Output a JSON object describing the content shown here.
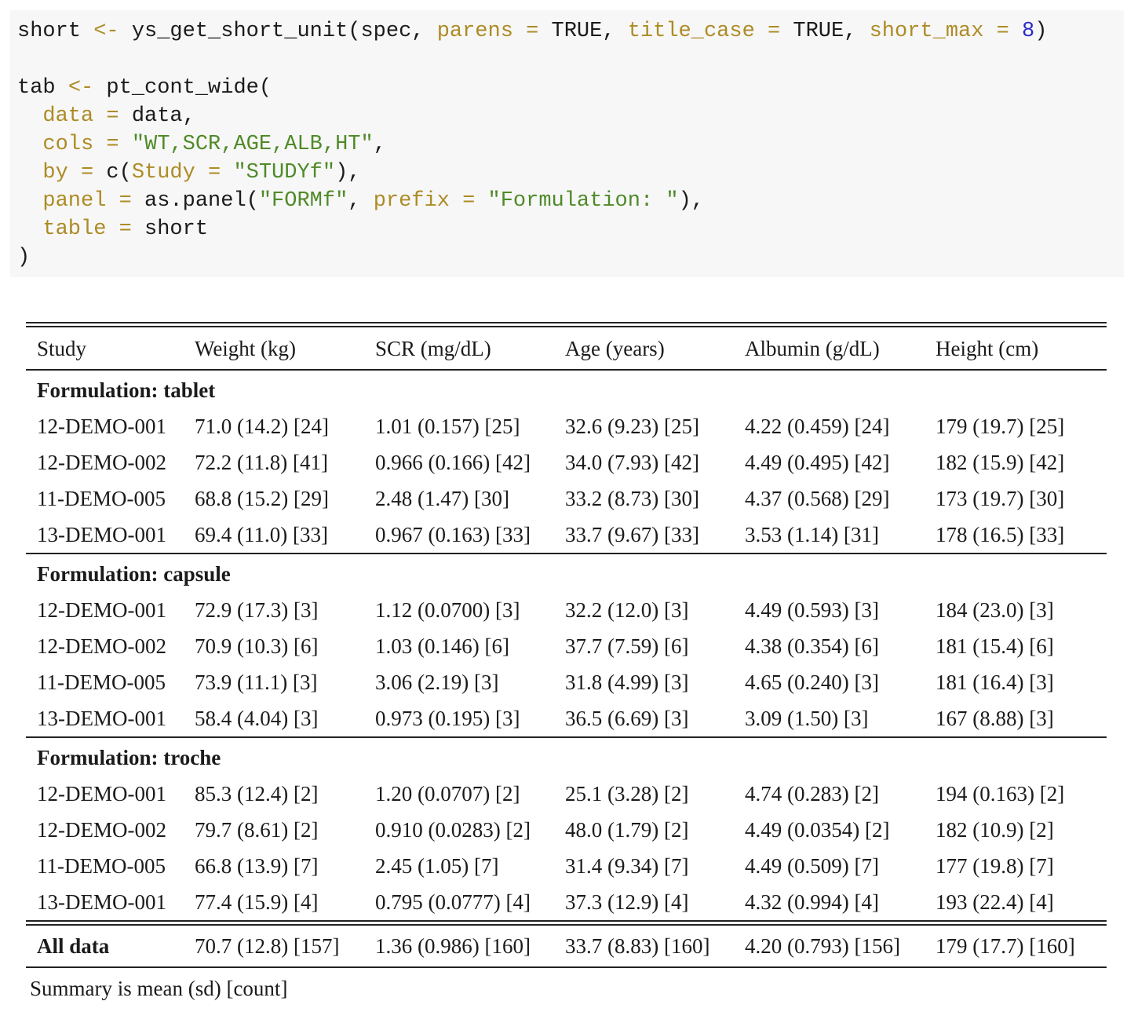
{
  "code": {
    "colors": {
      "plain": "#1b1b1b",
      "op": "#ad8b25",
      "arg": "#ad8b25",
      "str": "#4f8a28",
      "num": "#2a2ac9"
    },
    "background": "#f7f7f7",
    "lines": [
      [
        {
          "t": "short "
        },
        {
          "t": "<-",
          "c": "op"
        },
        {
          "t": " ys_get_short_unit(spec, "
        },
        {
          "t": "parens",
          "c": "arg"
        },
        {
          "t": " "
        },
        {
          "t": "=",
          "c": "op"
        },
        {
          "t": " TRUE, "
        },
        {
          "t": "title_case",
          "c": "arg"
        },
        {
          "t": " "
        },
        {
          "t": "=",
          "c": "op"
        },
        {
          "t": " TRUE, "
        },
        {
          "t": "short_max",
          "c": "arg"
        },
        {
          "t": " "
        },
        {
          "t": "=",
          "c": "op"
        },
        {
          "t": " "
        },
        {
          "t": "8",
          "c": "num"
        },
        {
          "t": ")"
        }
      ],
      [],
      [
        {
          "t": "tab "
        },
        {
          "t": "<-",
          "c": "op"
        },
        {
          "t": " pt_cont_wide("
        }
      ],
      [
        {
          "t": "  "
        },
        {
          "t": "data",
          "c": "arg"
        },
        {
          "t": " "
        },
        {
          "t": "=",
          "c": "op"
        },
        {
          "t": " data,"
        }
      ],
      [
        {
          "t": "  "
        },
        {
          "t": "cols",
          "c": "arg"
        },
        {
          "t": " "
        },
        {
          "t": "=",
          "c": "op"
        },
        {
          "t": " "
        },
        {
          "t": "\"WT,SCR,AGE,ALB,HT\"",
          "c": "str"
        },
        {
          "t": ","
        }
      ],
      [
        {
          "t": "  "
        },
        {
          "t": "by",
          "c": "arg"
        },
        {
          "t": " "
        },
        {
          "t": "=",
          "c": "op"
        },
        {
          "t": " c("
        },
        {
          "t": "Study",
          "c": "arg"
        },
        {
          "t": " "
        },
        {
          "t": "=",
          "c": "op"
        },
        {
          "t": " "
        },
        {
          "t": "\"STUDYf\"",
          "c": "str"
        },
        {
          "t": "),"
        }
      ],
      [
        {
          "t": "  "
        },
        {
          "t": "panel",
          "c": "arg"
        },
        {
          "t": " "
        },
        {
          "t": "=",
          "c": "op"
        },
        {
          "t": " as.panel("
        },
        {
          "t": "\"FORMf\"",
          "c": "str"
        },
        {
          "t": ", "
        },
        {
          "t": "prefix",
          "c": "arg"
        },
        {
          "t": " "
        },
        {
          "t": "=",
          "c": "op"
        },
        {
          "t": " "
        },
        {
          "t": "\"Formulation: \"",
          "c": "str"
        },
        {
          "t": "),"
        }
      ],
      [
        {
          "t": "  "
        },
        {
          "t": "table",
          "c": "arg"
        },
        {
          "t": " "
        },
        {
          "t": "=",
          "c": "op"
        },
        {
          "t": " short"
        }
      ],
      [
        {
          "t": ")"
        }
      ]
    ]
  },
  "table": {
    "columns": [
      "Study",
      "Weight (kg)",
      "SCR (mg/dL)",
      "Age (years)",
      "Albumin (g/dL)",
      "Height (cm)"
    ],
    "panels": [
      {
        "label": "Formulation: tablet",
        "rows": [
          {
            "study": "12-DEMO-001",
            "values": [
              "71.0 (14.2) [24]",
              "1.01 (0.157) [25]",
              "32.6 (9.23) [25]",
              "4.22 (0.459) [24]",
              "179 (19.7) [25]"
            ]
          },
          {
            "study": "12-DEMO-002",
            "values": [
              "72.2 (11.8) [41]",
              "0.966 (0.166) [42]",
              "34.0 (7.93) [42]",
              "4.49 (0.495) [42]",
              "182 (15.9) [42]"
            ]
          },
          {
            "study": "11-DEMO-005",
            "values": [
              "68.8 (15.2) [29]",
              "2.48 (1.47) [30]",
              "33.2 (8.73) [30]",
              "4.37 (0.568) [29]",
              "173 (19.7) [30]"
            ]
          },
          {
            "study": "13-DEMO-001",
            "values": [
              "69.4 (11.0) [33]",
              "0.967 (0.163) [33]",
              "33.7 (9.67) [33]",
              "3.53 (1.14) [31]",
              "178 (16.5) [33]"
            ]
          }
        ]
      },
      {
        "label": "Formulation: capsule",
        "rows": [
          {
            "study": "12-DEMO-001",
            "values": [
              "72.9 (17.3) [3]",
              "1.12 (0.0700) [3]",
              "32.2 (12.0) [3]",
              "4.49 (0.593) [3]",
              "184 (23.0) [3]"
            ]
          },
          {
            "study": "12-DEMO-002",
            "values": [
              "70.9 (10.3) [6]",
              "1.03 (0.146) [6]",
              "37.7 (7.59) [6]",
              "4.38 (0.354) [6]",
              "181 (15.4) [6]"
            ]
          },
          {
            "study": "11-DEMO-005",
            "values": [
              "73.9 (11.1) [3]",
              "3.06 (2.19) [3]",
              "31.8 (4.99) [3]",
              "4.65 (0.240) [3]",
              "181 (16.4) [3]"
            ]
          },
          {
            "study": "13-DEMO-001",
            "values": [
              "58.4 (4.04) [3]",
              "0.973 (0.195) [3]",
              "36.5 (6.69) [3]",
              "3.09 (1.50) [3]",
              "167 (8.88) [3]"
            ]
          }
        ]
      },
      {
        "label": "Formulation: troche",
        "rows": [
          {
            "study": "12-DEMO-001",
            "values": [
              "85.3 (12.4) [2]",
              "1.20 (0.0707) [2]",
              "25.1 (3.28) [2]",
              "4.74 (0.283) [2]",
              "194 (0.163) [2]"
            ]
          },
          {
            "study": "12-DEMO-002",
            "values": [
              "79.7 (8.61) [2]",
              "0.910 (0.0283) [2]",
              "48.0 (1.79) [2]",
              "4.49 (0.0354) [2]",
              "182 (10.9) [2]"
            ]
          },
          {
            "study": "11-DEMO-005",
            "values": [
              "66.8 (13.9) [7]",
              "2.45 (1.05) [7]",
              "31.4 (9.34) [7]",
              "4.49 (0.509) [7]",
              "177 (19.8) [7]"
            ]
          },
          {
            "study": "13-DEMO-001",
            "values": [
              "77.4 (15.9) [4]",
              "0.795 (0.0777) [4]",
              "37.3 (12.9) [4]",
              "4.32 (0.994) [4]",
              "193 (22.4) [4]"
            ]
          }
        ]
      }
    ],
    "summary": {
      "label": "All data",
      "values": [
        "70.7 (12.8) [157]",
        "1.36 (0.986) [160]",
        "33.7 (8.83) [160]",
        "4.20 (0.793) [156]",
        "179 (17.7) [160]"
      ]
    },
    "footnote": "Summary is mean (sd) [count]"
  }
}
